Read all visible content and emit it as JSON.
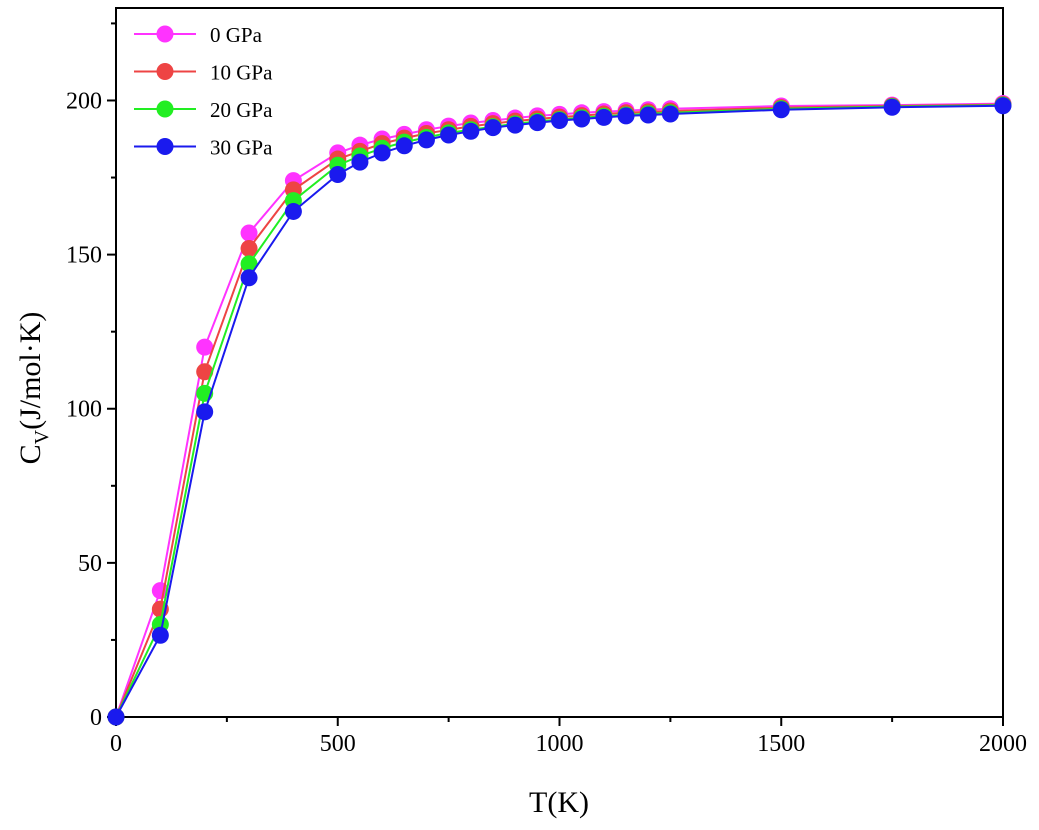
{
  "chart_data": {
    "type": "line",
    "title": "",
    "xlabel": "T(K)",
    "ylabel_main": "C",
    "ylabel_sub": "V",
    "ylabel_rest": "(J/mol·K)",
    "xlim": [
      0,
      2000
    ],
    "ylim": [
      0,
      230
    ],
    "xticks": [
      0,
      500,
      1000,
      1500,
      2000
    ],
    "xticks_minor": [
      250,
      750,
      1250,
      1750
    ],
    "yticks": [
      0,
      50,
      100,
      150,
      200
    ],
    "yticks_minor": [
      25,
      75,
      125,
      175,
      225
    ],
    "grid": false,
    "legend_position": "top-left",
    "x": [
      0,
      100,
      200,
      300,
      400,
      500,
      550,
      600,
      650,
      700,
      750,
      800,
      850,
      900,
      950,
      1000,
      1050,
      1100,
      1150,
      1200,
      1250,
      1500,
      1750,
      2000
    ],
    "series": [
      {
        "name": "0 GPa",
        "color": "#ff33ff",
        "values": [
          0,
          41,
          120,
          157,
          174,
          183,
          185.5,
          187.5,
          189,
          190.5,
          191.7,
          192.7,
          193.5,
          194.3,
          195,
          195.5,
          196,
          196.4,
          196.7,
          197,
          197.3,
          198.2,
          198.5,
          199
        ]
      },
      {
        "name": "10 GPa",
        "color": "#ee4444",
        "values": [
          0,
          35,
          112,
          152,
          171,
          181,
          183.5,
          186,
          187.8,
          189.3,
          190.5,
          191.6,
          192.5,
          193.3,
          194,
          194.6,
          195.1,
          195.6,
          196,
          196.3,
          196.6,
          197.7,
          198.2,
          198.7
        ]
      },
      {
        "name": "20 GPa",
        "color": "#22ee22",
        "values": [
          0,
          30,
          105,
          147,
          167.5,
          179,
          182,
          184.5,
          186.5,
          188,
          189.5,
          190.5,
          191.5,
          192.4,
          193.2,
          193.8,
          194.4,
          194.9,
          195.3,
          195.7,
          196,
          197.3,
          198,
          198.5
        ]
      },
      {
        "name": "30 GPa",
        "color": "#1a1aee",
        "values": [
          0,
          26.5,
          99,
          142.5,
          164,
          176,
          180,
          183,
          185.3,
          187.2,
          188.8,
          190,
          191.2,
          192,
          192.8,
          193.5,
          194,
          194.5,
          195,
          195.3,
          195.6,
          197,
          197.8,
          198.3
        ]
      }
    ]
  }
}
